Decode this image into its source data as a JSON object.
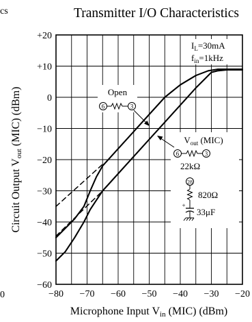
{
  "fragments": {
    "left_top": "cs",
    "left_bottom": "0"
  },
  "chart_data": {
    "type": "line",
    "title": "Transmitter I/O Characteristics",
    "xlabel": "Microphone Input  V",
    "xlabel_sub": "in",
    "xlabel_tail": " (MIC)  (dBm)",
    "ylabel": "Circuit Output  V",
    "ylabel_sub": "out",
    "ylabel_tail": " (MIC)  (dBm)",
    "xlim": [
      -80,
      -20
    ],
    "ylim": [
      -60,
      20
    ],
    "xticks": [
      {
        "v": -80,
        "label": "−80"
      },
      {
        "v": -70,
        "label": "−70"
      },
      {
        "v": -60,
        "label": "−60"
      },
      {
        "v": -50,
        "label": "−50"
      },
      {
        "v": -40,
        "label": "−40"
      },
      {
        "v": -30,
        "label": "−30"
      },
      {
        "v": -20,
        "label": "−20"
      }
    ],
    "yticks": [
      {
        "v": 20,
        "label": "+20"
      },
      {
        "v": 10,
        "label": "+10"
      },
      {
        "v": 0,
        "label": "0"
      },
      {
        "v": -10,
        "label": "−10"
      },
      {
        "v": -20,
        "label": "−20"
      },
      {
        "v": -30,
        "label": "−30"
      },
      {
        "v": -40,
        "label": "−40"
      },
      {
        "v": -50,
        "label": "−50"
      },
      {
        "v": -60,
        "label": "−60"
      }
    ],
    "grid": true,
    "series": [
      {
        "style": "solid",
        "x": [
          -80,
          -77,
          -74,
          -71,
          -69,
          -67,
          -65,
          -60,
          -55,
          -50,
          -45,
          -40,
          -35,
          -31,
          -28,
          -25,
          -22,
          -20
        ],
        "y": [
          -45,
          -42,
          -39,
          -35,
          -30,
          -25.5,
          -22,
          -16.5,
          -11,
          -5.5,
          0,
          4,
          7,
          8.5,
          9,
          9,
          9,
          9
        ]
      },
      {
        "style": "solid",
        "x": [
          -80,
          -77,
          -74,
          -71,
          -69,
          -67,
          -65,
          -60,
          -55,
          -50,
          -45,
          -40,
          -35,
          -32,
          -30,
          -28,
          -25,
          -22,
          -20
        ],
        "y": [
          -52.5,
          -49.5,
          -45,
          -40,
          -36,
          -33,
          -30,
          -24.5,
          -19,
          -13.5,
          -8,
          -2.5,
          3,
          6,
          8,
          8.5,
          8.8,
          8.8,
          8.8
        ]
      },
      {
        "style": "dashed",
        "x": [
          -80,
          -65
        ],
        "y": [
          -35,
          -21.5
        ]
      },
      {
        "style": "dashed",
        "x": [
          -80,
          -65
        ],
        "y": [
          -44.5,
          -30
        ]
      }
    ],
    "annotations": {
      "conditions": {
        "line1": "I",
        "line1_sub": "L",
        "line1_tail": "=30mA",
        "line2": "f",
        "line2_sub": "in",
        "line2_tail": "=1kHz"
      },
      "open": {
        "label": "Open",
        "pin_a": "6",
        "pin_b": "3"
      },
      "vout": {
        "label": "V",
        "label_sub": "out",
        "label_tail": " (MIC)",
        "pin_a": "6",
        "pin_b": "3",
        "resistor": "22kΩ",
        "pin_c": "28",
        "resistor2": "820Ω",
        "capacitor": "33μF",
        "cap_sign": "+"
      }
    }
  }
}
